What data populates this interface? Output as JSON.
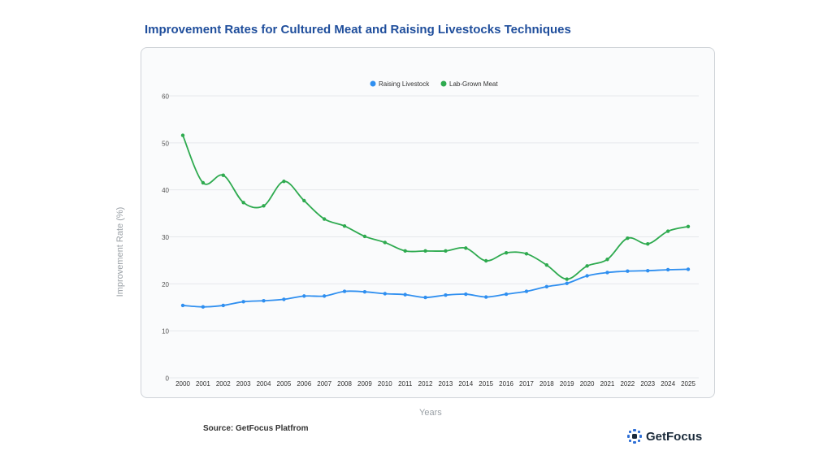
{
  "title": "Improvement Rates for Cultured Meat and Raising Livestocks Techniques",
  "source": "Source: GetFocus Platfrom",
  "brand": "GetFocus",
  "colors": {
    "title": "#1f4e9c",
    "livestock": "#2f8ff0",
    "labgrown": "#2eaa4f"
  },
  "chart_data": {
    "type": "line",
    "title": "Improvement Rates for Cultured Meat and Raising Livestocks Techniques",
    "xlabel": "Years",
    "ylabel": "Improvement Rate (%)",
    "ylim": [
      0,
      60
    ],
    "yticks": [
      "0",
      "10",
      "20",
      "30",
      "40",
      "50",
      "60"
    ],
    "legend_position": "top-center",
    "grid": true,
    "categories": [
      "2000",
      "2001",
      "2002",
      "2003",
      "2004",
      "2005",
      "2006",
      "2007",
      "2008",
      "2009",
      "2010",
      "2011",
      "2012",
      "2013",
      "2014",
      "2015",
      "2016",
      "2017",
      "2018",
      "2019",
      "2020",
      "2021",
      "2022",
      "2023",
      "2024",
      "2025"
    ],
    "series": [
      {
        "name": "Raising Livestock",
        "color": "#2f8ff0",
        "values": [
          15.4,
          15.1,
          15.4,
          16.2,
          16.4,
          16.7,
          17.4,
          17.4,
          18.4,
          18.3,
          17.9,
          17.7,
          17.1,
          17.6,
          17.8,
          17.2,
          17.8,
          18.4,
          19.4,
          20.1,
          21.7,
          22.4,
          22.7,
          22.8,
          23.0,
          23.1
        ]
      },
      {
        "name": "Lab-Grown Meat",
        "color": "#2eaa4f",
        "values": [
          51.6,
          41.5,
          43.1,
          37.3,
          36.6,
          41.8,
          37.7,
          33.8,
          32.3,
          30.1,
          28.8,
          27.0,
          27.0,
          27.0,
          27.6,
          24.9,
          26.6,
          26.4,
          24.0,
          21.0,
          23.8,
          25.2,
          29.7,
          28.5,
          31.2,
          32.2
        ]
      }
    ]
  }
}
